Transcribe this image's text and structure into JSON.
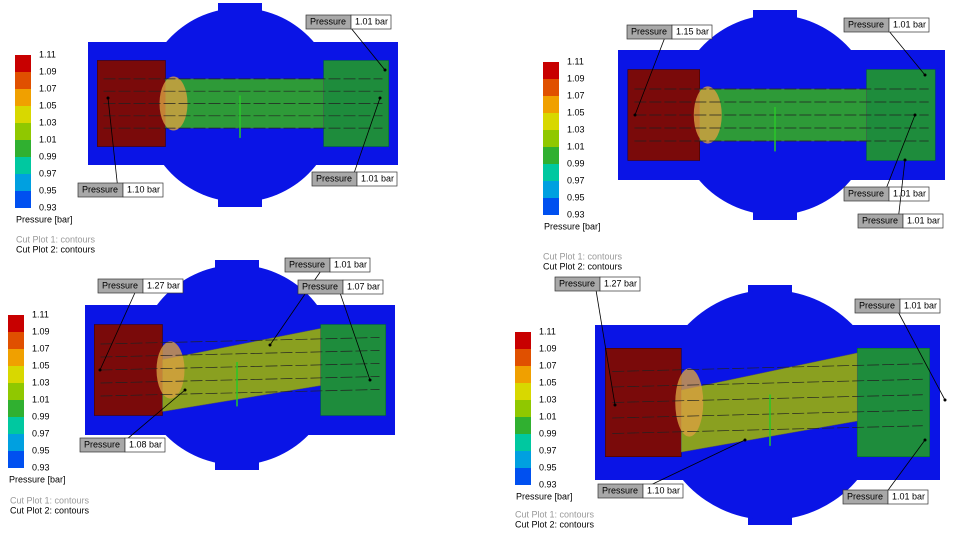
{
  "panels": [
    {
      "legend": {
        "ticks": [
          "1.11",
          "1.09",
          "1.07",
          "1.05",
          "1.03",
          "1.01",
          "0.99",
          "0.97",
          "0.95",
          "0.93"
        ],
        "title": "Pressure [bar]"
      },
      "plots": [
        "Cut Plot 1: contours",
        "Cut Plot 2: contours"
      ],
      "probes": [
        {
          "label": "Pressure",
          "value": "1.01 bar"
        },
        {
          "label": "Pressure",
          "value": "1.10 bar"
        },
        {
          "label": "Pressure",
          "value": "1.01 bar"
        }
      ]
    },
    {
      "legend": {
        "ticks": [
          "1.11",
          "1.09",
          "1.07",
          "1.05",
          "1.03",
          "1.01",
          "0.99",
          "0.97",
          "0.95",
          "0.93"
        ],
        "title": "Pressure [bar]"
      },
      "plots": [
        "Cut Plot 1: contours",
        "Cut Plot 2: contours"
      ],
      "probes": [
        {
          "label": "Pressure",
          "value": "1.15 bar"
        },
        {
          "label": "Pressure",
          "value": "1.01 bar"
        },
        {
          "label": "Pressure",
          "value": "1.01 bar"
        },
        {
          "label": "Pressure",
          "value": "1.01 bar"
        }
      ]
    },
    {
      "legend": {
        "ticks": [
          "1.11",
          "1.09",
          "1.07",
          "1.05",
          "1.03",
          "1.01",
          "0.99",
          "0.97",
          "0.95",
          "0.93"
        ],
        "title": "Pressure [bar]"
      },
      "plots": [
        "Cut Plot 1: contours",
        "Cut Plot 2: contours"
      ],
      "probes": [
        {
          "label": "Pressure",
          "value": "1.01 bar"
        },
        {
          "label": "Pressure",
          "value": "1.27 bar"
        },
        {
          "label": "Pressure",
          "value": "1.07 bar"
        },
        {
          "label": "Pressure",
          "value": "1.08 bar"
        }
      ]
    },
    {
      "legend": {
        "ticks": [
          "1.11",
          "1.09",
          "1.07",
          "1.05",
          "1.03",
          "1.01",
          "0.99",
          "0.97",
          "0.95",
          "0.93"
        ],
        "title": "Pressure [bar]"
      },
      "plots": [
        "Cut Plot 1: contours",
        "Cut Plot 2: contours"
      ],
      "probes": [
        {
          "label": "Pressure",
          "value": "1.27 bar"
        },
        {
          "label": "Pressure",
          "value": "1.01 bar"
        },
        {
          "label": "Pressure",
          "value": "1.10 bar"
        },
        {
          "label": "Pressure",
          "value": "1.01 bar"
        }
      ]
    }
  ]
}
